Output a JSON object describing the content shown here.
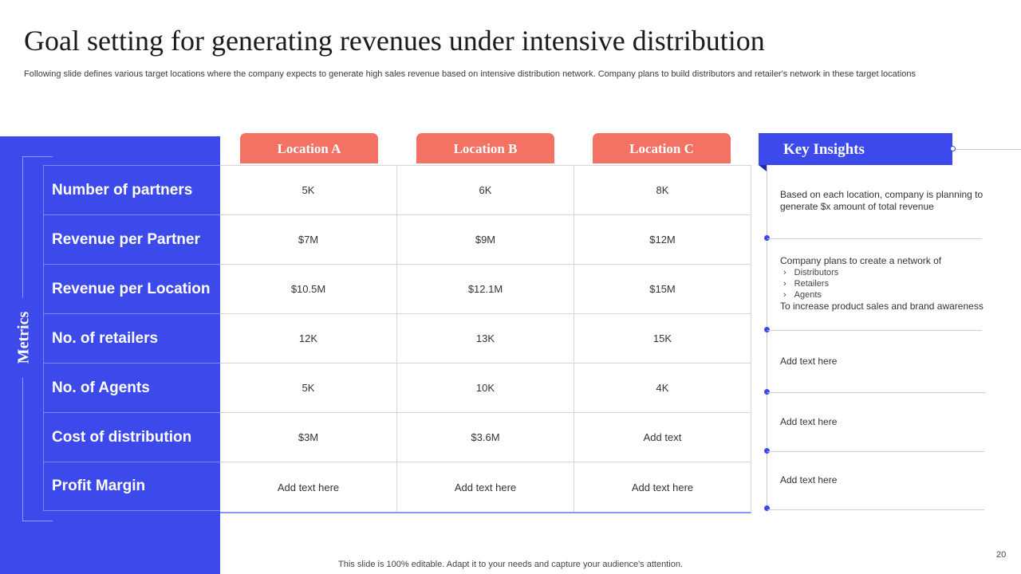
{
  "title": "Goal setting for generating revenues under intensive distribution",
  "subtitle": "Following slide defines various target locations where the company expects to  generate high sales revenue based on intensive distribution network. Company plans to build distributors and retailer's network in these target locations",
  "metrics_label": "Metrics",
  "locations": [
    "Location A",
    "Location B",
    "Location C"
  ],
  "metrics": [
    {
      "label": "Number of partners",
      "values": [
        "5K",
        "6K",
        "8K"
      ]
    },
    {
      "label": "Revenue per Partner",
      "values": [
        "$7M",
        "$9M",
        "$12M"
      ]
    },
    {
      "label": "Revenue per Location",
      "values": [
        "$10.5M",
        "$12.1M",
        "$15M"
      ]
    },
    {
      "label": "No. of retailers",
      "values": [
        "12K",
        "13K",
        "15K"
      ]
    },
    {
      "label": "No. of Agents",
      "values": [
        "5K",
        "10K",
        "4K"
      ]
    },
    {
      "label": "Cost of distribution",
      "values": [
        "$3M",
        "$3.6M",
        "Add text"
      ]
    },
    {
      "label": "Profit Margin",
      "values": [
        "Add text here",
        "Add text here",
        "Add text here"
      ]
    }
  ],
  "insights": {
    "header": "Key Insights",
    "item1": "Based on each location, company is planning to generate $x amount of total revenue",
    "item2": {
      "intro": "Company plans to create a network of",
      "bullets": [
        "Distributors",
        "Retailers",
        "Agents"
      ],
      "outro": "To increase product sales and brand awareness"
    },
    "item3": "Add text here",
    "item4": "Add text here",
    "item5": "Add text here"
  },
  "footer": "This slide is 100% editable. Adapt it to your needs and capture your audience's attention.",
  "page_number": "20",
  "colors": {
    "primary_blue": "#3c4aec",
    "coral": "#f47264"
  }
}
